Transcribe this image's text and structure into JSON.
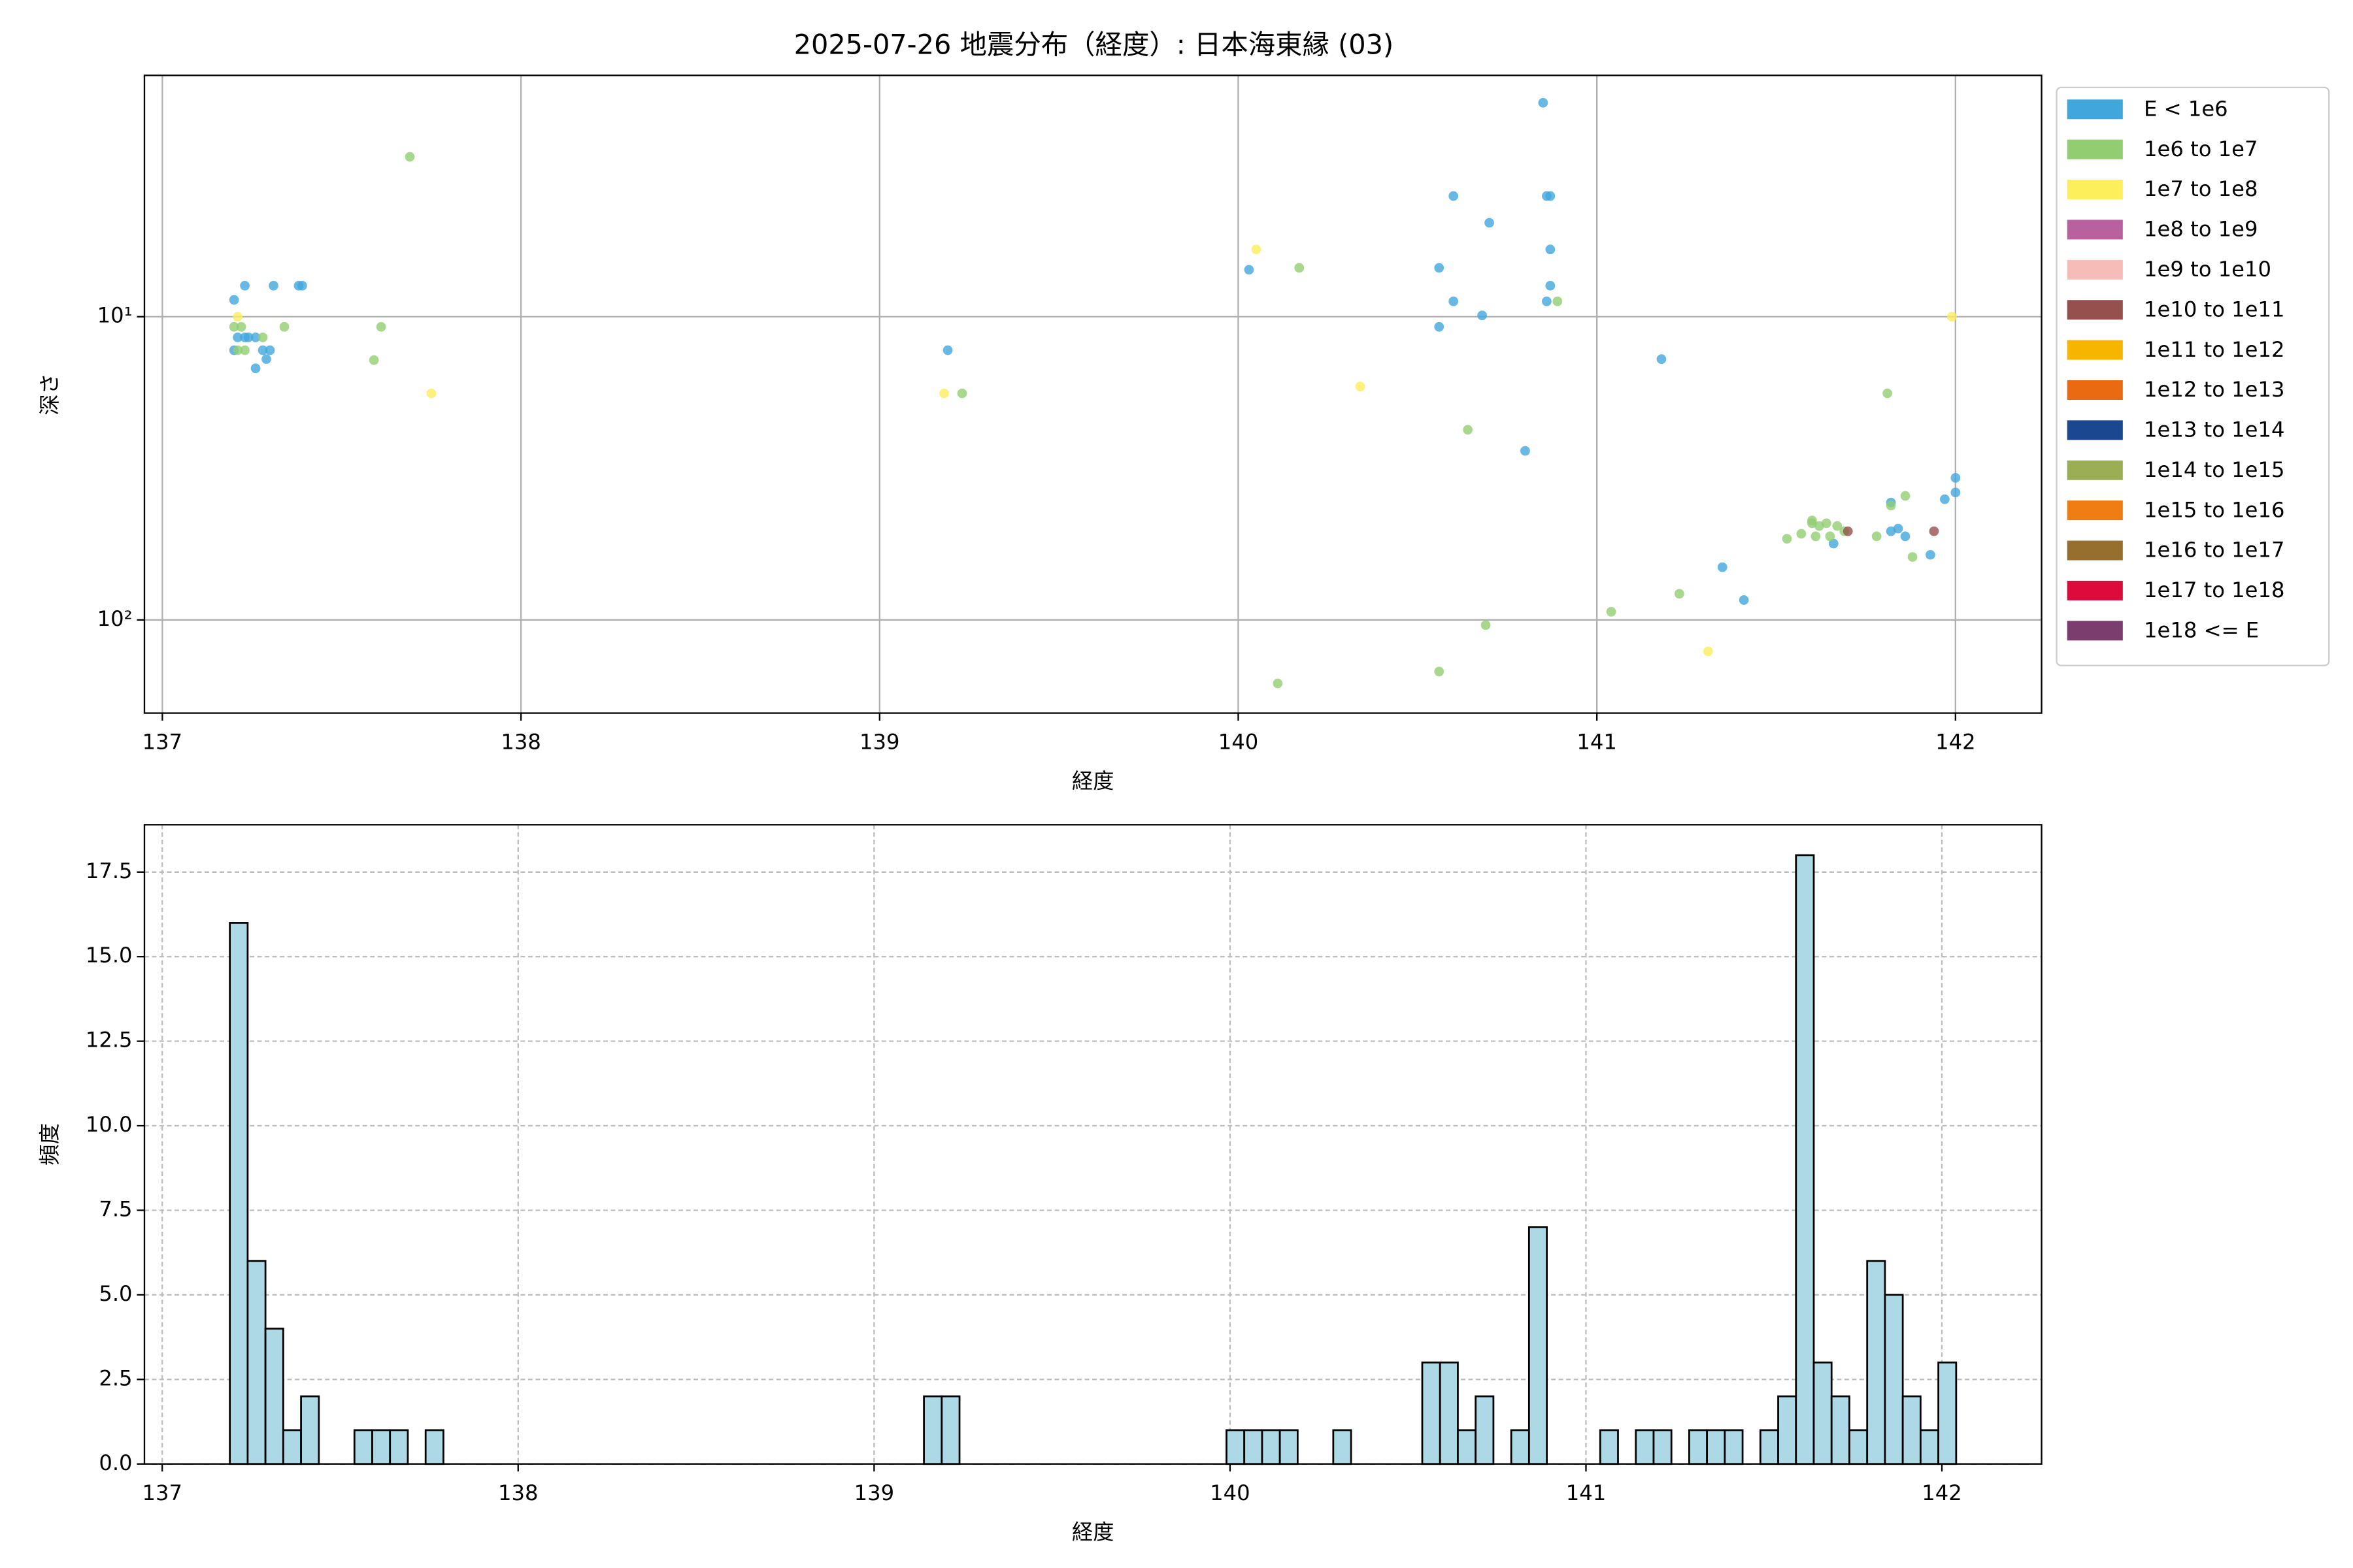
{
  "chart_data": [
    {
      "type": "scatter",
      "title": "2025-07-26 地震分布（経度）: 日本海東縁 (03)",
      "xlabel": "経度",
      "ylabel": "深さ",
      "xlim": [
        136.95,
        142.24
      ],
      "xticks": [
        137,
        138,
        139,
        140,
        141,
        142
      ],
      "ylim": [
        203,
        1.6
      ],
      "yscale": "log",
      "yticks": [
        {
          "value": 10,
          "label": "10¹"
        },
        {
          "value": 100,
          "label": "10²"
        }
      ],
      "grid": true,
      "legend": "outside right",
      "series": [
        {
          "name": "E < 1e6",
          "color": "#41a6dc",
          "x": [
            137.2,
            137.23,
            137.31,
            137.38,
            137.39,
            137.2,
            137.21,
            137.23,
            137.24,
            137.26,
            137.26,
            137.28,
            137.29,
            137.3,
            139.19,
            140.03,
            140.56,
            140.6,
            140.56,
            140.6,
            140.68,
            140.7,
            140.85,
            140.86,
            140.87,
            140.87,
            140.87,
            140.86,
            141.18,
            140.8,
            141.35,
            141.41,
            141.82,
            141.82,
            141.84,
            141.86,
            141.93,
            141.97,
            142.0,
            142.0,
            141.66
          ],
          "y": [
            8.8,
            7.9,
            7.9,
            7.9,
            7.9,
            12.9,
            11.7,
            11.7,
            11.7,
            11.7,
            14.8,
            12.9,
            13.8,
            12.9,
            12.9,
            7.0,
            6.9,
            4.0,
            10.8,
            8.9,
            9.9,
            4.9,
            1.97,
            4.0,
            4.0,
            6.0,
            7.9,
            8.9,
            13.8,
            27.7,
            67,
            86,
            41,
            51,
            50,
            53,
            61,
            40,
            38,
            34,
            56
          ]
        },
        {
          "name": "1e6 to 1e7",
          "color": "#92cd72",
          "x": [
            137.69,
            137.2,
            137.22,
            137.21,
            137.23,
            137.28,
            137.34,
            137.61,
            137.59,
            139.23,
            140.17,
            140.89,
            140.64,
            140.69,
            141.04,
            140.11,
            140.56,
            141.23,
            141.53,
            141.57,
            141.6,
            141.6,
            141.62,
            141.64,
            141.61,
            141.65,
            141.67,
            141.78,
            141.81,
            141.82,
            141.86,
            141.88,
            141.69
          ],
          "y": [
            2.97,
            10.8,
            10.8,
            12.9,
            12.9,
            11.7,
            10.8,
            10.8,
            13.9,
            17.9,
            6.9,
            8.9,
            23.6,
            104,
            94,
            162,
            148,
            82,
            54,
            52,
            47,
            48,
            49,
            48,
            53,
            53,
            49,
            53,
            17.9,
            42,
            39,
            62,
            51
          ]
        },
        {
          "name": "1e7 to 1e8",
          "color": "#fdee5c",
          "x": [
            137.21,
            137.75,
            139.18,
            140.05,
            140.34,
            141.31,
            141.99
          ],
          "y": [
            10,
            17.9,
            17.9,
            6.0,
            17.0,
            127,
            10
          ]
        },
        {
          "name": "1e8 to 1e9",
          "color": "#b9609e",
          "x": [],
          "y": []
        },
        {
          "name": "1e9 to 1e10",
          "color": "#f5bcb8",
          "x": [],
          "y": []
        },
        {
          "name": "1e10 to 1e11",
          "color": "#96504e",
          "x": [
            141.94,
            141.7
          ],
          "y": [
            51,
            51
          ]
        },
        {
          "name": "1e11 to 1e12",
          "color": "#f7b500",
          "x": [],
          "y": []
        },
        {
          "name": "1e12 to 1e13",
          "color": "#e96a11",
          "x": [],
          "y": []
        },
        {
          "name": "1e13 to 1e14",
          "color": "#1b4690",
          "x": [],
          "y": []
        },
        {
          "name": "1e14 to 1e15",
          "color": "#9cae53",
          "x": [],
          "y": []
        },
        {
          "name": "1e15 to 1e16",
          "color": "#ef7d13",
          "x": [],
          "y": []
        },
        {
          "name": "1e16 to 1e17",
          "color": "#966f2f",
          "x": [],
          "y": []
        },
        {
          "name": "1e17 to 1e18",
          "color": "#de0a3c",
          "x": [],
          "y": []
        },
        {
          "name": "1e18 <= E",
          "color": "#7a3d6e",
          "x": [],
          "y": []
        }
      ]
    },
    {
      "type": "histogram",
      "xlabel": "経度",
      "ylabel": "頻度",
      "xlim": [
        136.95,
        142.28
      ],
      "xticks": [
        137,
        138,
        139,
        140,
        141,
        142
      ],
      "ylim": [
        0,
        18.9
      ],
      "yticks": [
        {
          "value": 0,
          "label": "0.0"
        },
        2.5,
        {
          "value": 5,
          "label": "5.0"
        },
        7.5,
        {
          "value": 10,
          "label": "10.0"
        },
        12.5,
        {
          "value": 15,
          "label": "15.0"
        },
        17.5
      ],
      "grid": true,
      "color": "#add8e6",
      "edgecolor": "#000000",
      "bins": [
        137.19,
        137.24,
        137.29,
        137.34,
        137.39,
        137.44,
        137.49,
        137.54,
        137.59,
        137.64,
        137.69,
        137.74,
        137.79,
        137.84,
        137.89,
        137.94,
        137.99,
        138.04,
        138.09,
        138.14,
        138.19,
        138.24,
        138.29,
        138.34,
        138.39,
        138.44,
        138.49,
        138.54,
        138.59,
        138.64,
        138.69,
        138.74,
        138.79,
        138.84,
        138.89,
        138.94,
        138.99,
        139.04,
        139.09,
        139.14,
        139.19,
        139.24,
        139.29,
        139.34,
        139.39,
        139.44,
        139.49,
        139.54,
        139.59,
        139.64,
        139.69,
        139.74,
        139.79,
        139.84,
        139.89,
        139.94,
        139.99,
        140.04,
        140.09,
        140.14,
        140.19,
        140.24,
        140.29,
        140.34,
        140.39,
        140.44,
        140.49,
        140.54,
        140.59,
        140.64,
        140.69,
        140.74,
        140.79,
        140.84,
        140.89,
        140.94,
        140.99,
        141.04,
        141.09,
        141.14,
        141.19,
        141.24,
        141.29,
        141.34,
        141.39,
        141.44,
        141.49,
        141.54,
        141.59,
        141.64,
        141.69,
        141.74,
        141.79,
        141.84,
        141.89,
        141.94,
        141.99,
        142.04
      ],
      "values": [
        16,
        6,
        4,
        1,
        2,
        0,
        0,
        1,
        1,
        1,
        0,
        1,
        0,
        0,
        0,
        0,
        0,
        0,
        0,
        0,
        0,
        0,
        0,
        0,
        0,
        0,
        0,
        0,
        0,
        0,
        0,
        0,
        0,
        0,
        0,
        0,
        0,
        0,
        0,
        2,
        2,
        0,
        0,
        0,
        0,
        0,
        0,
        0,
        0,
        0,
        0,
        0,
        0,
        0,
        0,
        0,
        1,
        1,
        1,
        1,
        0,
        0,
        1,
        0,
        0,
        0,
        0,
        3,
        3,
        1,
        2,
        0,
        1,
        7,
        0,
        0,
        0,
        1,
        0,
        1,
        1,
        0,
        1,
        1,
        1,
        0,
        1,
        2,
        18,
        3,
        2,
        1,
        6,
        5,
        2,
        1,
        3
      ]
    }
  ]
}
